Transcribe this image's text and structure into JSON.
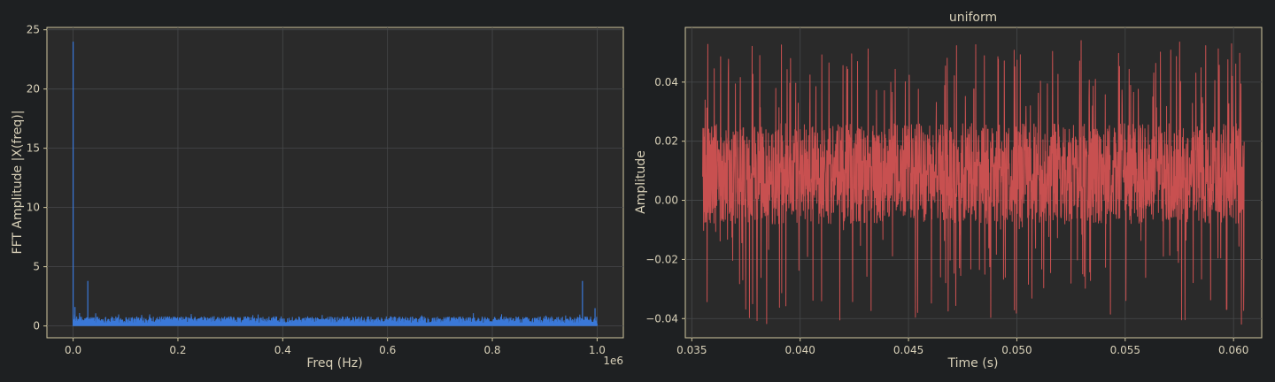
{
  "chart_data": [
    {
      "type": "line",
      "title": "",
      "xlabel": "Freq (Hz)",
      "ylabel": "FFT Amplitude |X(freq)|",
      "x_offset_label": "1e6",
      "xlim": [
        -0.05,
        1.05
      ],
      "ylim": [
        -1.0,
        25.2
      ],
      "xticks": [
        0.0,
        0.2,
        0.4,
        0.6,
        0.8,
        1.0
      ],
      "xtick_labels": [
        "0.0",
        "0.2",
        "0.4",
        "0.6",
        "0.8",
        "1.0"
      ],
      "yticks": [
        0,
        5,
        10,
        15,
        20,
        25
      ],
      "ytick_labels": [
        "0",
        "5",
        "10",
        "15",
        "20",
        "25"
      ],
      "grid": true,
      "series": [
        {
          "color": "#3a78d8",
          "x_range": [
            0.0,
            1.0
          ],
          "noise_baseline": 0.7,
          "spikes": [
            {
              "x": 0.0,
              "y": 24.0
            },
            {
              "x": 0.028,
              "y": 3.8
            },
            {
              "x": 0.972,
              "y": 3.8
            },
            {
              "x": 0.0035,
              "y": 1.6
            },
            {
              "x": 0.996,
              "y": 1.5
            }
          ]
        }
      ]
    },
    {
      "type": "line",
      "title": "uniform",
      "xlabel": "Time (s)",
      "ylabel": "Amplitude",
      "xlim": [
        0.0347,
        0.0613
      ],
      "ylim": [
        -0.0465,
        0.0585
      ],
      "xticks": [
        0.035,
        0.04,
        0.045,
        0.05,
        0.055,
        0.06
      ],
      "xtick_labels": [
        "0.035",
        "0.040",
        "0.045",
        "0.050",
        "0.055",
        "0.060"
      ],
      "yticks": [
        -0.04,
        -0.02,
        0.0,
        0.02,
        0.04
      ],
      "ytick_labels": [
        "−0.04",
        "−0.02",
        "0.00",
        "0.02",
        "0.04"
      ],
      "grid": true,
      "series": [
        {
          "color": "#c85050",
          "x_range": [
            0.0355,
            0.0605
          ],
          "center": 0.009,
          "band_half_width": 0.017,
          "min": -0.042,
          "max": 0.055
        }
      ]
    }
  ]
}
